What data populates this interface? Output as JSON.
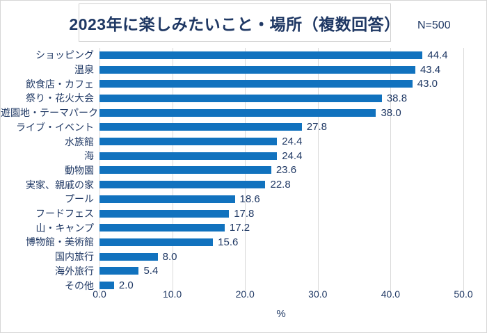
{
  "header": {
    "title": "2023年に楽しみたいこと・場所（複数回答）",
    "sample_size": "N=500"
  },
  "chart_data": {
    "type": "bar",
    "orientation": "horizontal",
    "title": "2023年に楽しみたいこと・場所（複数回答）",
    "sample_size": "N=500",
    "categories": [
      "ショッピング",
      "温泉",
      "飲食店・カフェ",
      "祭り・花火大会",
      "遊園地・テーマパーク",
      "ライブ・イベント",
      "水族館",
      "海",
      "動物園",
      "実家、親戚の家",
      "プール",
      "フードフェス",
      "山・キャンプ",
      "博物館・美術館",
      "国内旅行",
      "海外旅行",
      "その他"
    ],
    "values": [
      44.4,
      43.4,
      43.0,
      38.8,
      38.0,
      27.8,
      24.4,
      24.4,
      23.6,
      22.8,
      18.6,
      17.8,
      17.2,
      15.6,
      8.0,
      5.4,
      2.0
    ],
    "xlabel": "%",
    "x_ticks": [
      "0.0",
      "10.0",
      "20.0",
      "30.0",
      "40.0",
      "50.0"
    ],
    "xlim": [
      0,
      50
    ],
    "grid": true,
    "legend": "none",
    "bar_color": "#1172be",
    "text_color": "#1f3864",
    "gridline_color": "#d9d9d9"
  }
}
